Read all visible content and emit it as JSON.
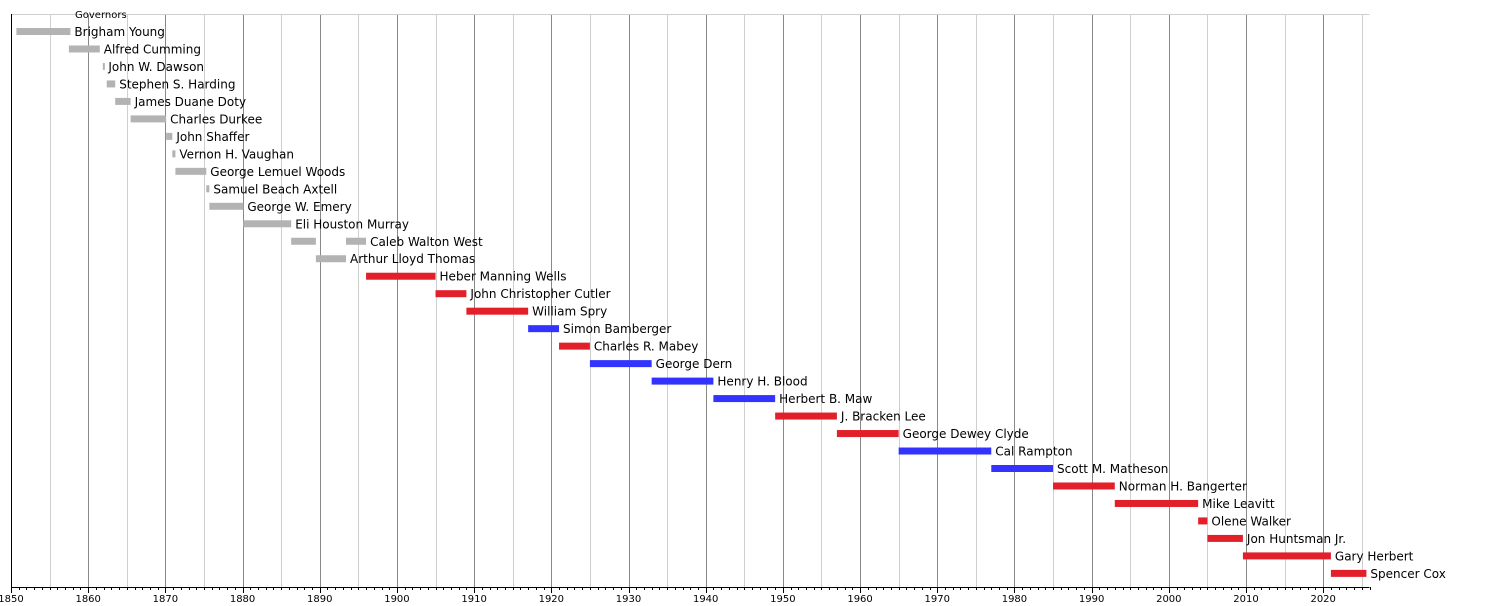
{
  "chart_data": {
    "type": "bar",
    "orientation": "horizontal-timeline",
    "title": "",
    "section_label": "Governors",
    "xlim": [
      1850,
      2026
    ],
    "major_tick_step": 10,
    "minor_tick_step": 1,
    "x_tick_labels": [
      "1850",
      "1860",
      "1870",
      "1880",
      "1890",
      "1900",
      "1910",
      "1920",
      "1930",
      "1940",
      "1950",
      "1960",
      "1970",
      "1980",
      "1990",
      "2000",
      "2010",
      "2020"
    ],
    "grid": true,
    "colors": {
      "territorial": "#b3b3b3",
      "republican": "#e2202a",
      "democratic": "#3333ff",
      "major_grid": "#888888",
      "minor_grid": "#cfcfcf",
      "axis": "#000000"
    },
    "rows": [
      {
        "label": "Brigham Young",
        "segments": [
          {
            "start": 1850.7,
            "end": 1857.7,
            "party": "territorial"
          }
        ]
      },
      {
        "label": "Alfred Cumming",
        "segments": [
          {
            "start": 1857.5,
            "end": 1861.5,
            "party": "territorial"
          }
        ]
      },
      {
        "label": "John W. Dawson",
        "segments": [
          {
            "start": 1861.9,
            "end": 1862.1,
            "party": "territorial"
          }
        ]
      },
      {
        "label": "Stephen S. Harding",
        "segments": [
          {
            "start": 1862.4,
            "end": 1863.5,
            "party": "territorial"
          }
        ]
      },
      {
        "label": "James Duane Doty",
        "segments": [
          {
            "start": 1863.5,
            "end": 1865.5,
            "party": "territorial"
          }
        ]
      },
      {
        "label": "Charles Durkee",
        "segments": [
          {
            "start": 1865.5,
            "end": 1870.1,
            "party": "territorial"
          }
        ]
      },
      {
        "label": "John Shaffer",
        "segments": [
          {
            "start": 1870.1,
            "end": 1870.9,
            "party": "territorial"
          }
        ]
      },
      {
        "label": "Vernon H. Vaughan",
        "segments": [
          {
            "start": 1870.9,
            "end": 1871.3,
            "party": "territorial"
          }
        ]
      },
      {
        "label": "George Lemuel Woods",
        "segments": [
          {
            "start": 1871.3,
            "end": 1875.3,
            "party": "territorial"
          }
        ]
      },
      {
        "label": "Samuel Beach Axtell",
        "segments": [
          {
            "start": 1875.3,
            "end": 1875.7,
            "party": "territorial"
          }
        ]
      },
      {
        "label": "George W. Emery",
        "segments": [
          {
            "start": 1875.7,
            "end": 1880.1,
            "party": "territorial"
          }
        ]
      },
      {
        "label": "Eli Houston Murray",
        "segments": [
          {
            "start": 1880.1,
            "end": 1886.3,
            "party": "territorial"
          }
        ]
      },
      {
        "label": "Caleb Walton West",
        "segments": [
          {
            "start": 1886.3,
            "end": 1889.5,
            "party": "territorial"
          },
          {
            "start": 1893.4,
            "end": 1896.0,
            "party": "territorial"
          }
        ]
      },
      {
        "label": "Arthur Lloyd Thomas",
        "segments": [
          {
            "start": 1889.5,
            "end": 1893.4,
            "party": "territorial"
          }
        ]
      },
      {
        "label": "Heber Manning Wells",
        "segments": [
          {
            "start": 1896.0,
            "end": 1905.0,
            "party": "republican"
          }
        ]
      },
      {
        "label": "John Christopher Cutler",
        "segments": [
          {
            "start": 1905.0,
            "end": 1909.0,
            "party": "republican"
          }
        ]
      },
      {
        "label": "William Spry",
        "segments": [
          {
            "start": 1909.0,
            "end": 1917.0,
            "party": "republican"
          }
        ]
      },
      {
        "label": "Simon Bamberger",
        "segments": [
          {
            "start": 1917.0,
            "end": 1921.0,
            "party": "democratic"
          }
        ]
      },
      {
        "label": "Charles R. Mabey",
        "segments": [
          {
            "start": 1921.0,
            "end": 1925.0,
            "party": "republican"
          }
        ]
      },
      {
        "label": "George Dern",
        "segments": [
          {
            "start": 1925.0,
            "end": 1933.0,
            "party": "democratic"
          }
        ]
      },
      {
        "label": "Henry H. Blood",
        "segments": [
          {
            "start": 1933.0,
            "end": 1941.0,
            "party": "democratic"
          }
        ]
      },
      {
        "label": "Herbert B. Maw",
        "segments": [
          {
            "start": 1941.0,
            "end": 1949.0,
            "party": "democratic"
          }
        ]
      },
      {
        "label": "J. Bracken Lee",
        "segments": [
          {
            "start": 1949.0,
            "end": 1957.0,
            "party": "republican"
          }
        ]
      },
      {
        "label": "George Dewey Clyde",
        "segments": [
          {
            "start": 1957.0,
            "end": 1965.0,
            "party": "republican"
          }
        ]
      },
      {
        "label": "Cal Rampton",
        "segments": [
          {
            "start": 1965.0,
            "end": 1977.0,
            "party": "democratic"
          }
        ]
      },
      {
        "label": "Scott M. Matheson",
        "segments": [
          {
            "start": 1977.0,
            "end": 1985.0,
            "party": "democratic"
          }
        ]
      },
      {
        "label": "Norman H. Bangerter",
        "segments": [
          {
            "start": 1985.0,
            "end": 1993.0,
            "party": "republican"
          }
        ]
      },
      {
        "label": "Mike Leavitt",
        "segments": [
          {
            "start": 1993.0,
            "end": 2003.8,
            "party": "republican"
          }
        ]
      },
      {
        "label": "Olene Walker",
        "segments": [
          {
            "start": 2003.8,
            "end": 2005.0,
            "party": "republican"
          }
        ]
      },
      {
        "label": "Jon Huntsman Jr.",
        "segments": [
          {
            "start": 2005.0,
            "end": 2009.6,
            "party": "republican"
          }
        ]
      },
      {
        "label": "Gary Herbert",
        "segments": [
          {
            "start": 2009.6,
            "end": 2021.0,
            "party": "republican"
          }
        ]
      },
      {
        "label": "Spencer Cox",
        "segments": [
          {
            "start": 2021.0,
            "end": 2025.6,
            "party": "republican"
          }
        ]
      }
    ]
  }
}
